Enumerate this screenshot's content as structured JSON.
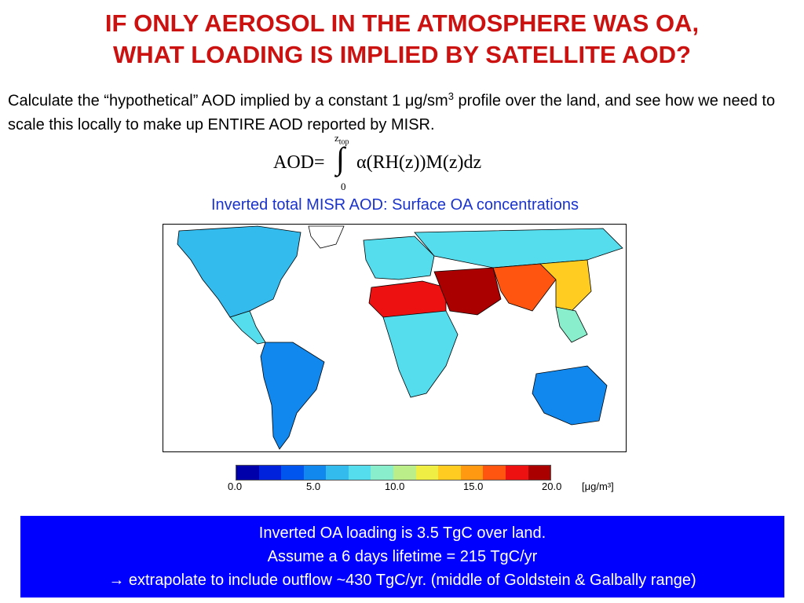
{
  "title": {
    "line1": "IF ONLY AEROSOL IN THE ATMOSPHERE WAS OA,",
    "line2": "WHAT LOADING IS IMPLIED BY SATELLITE AOD?"
  },
  "intro": {
    "text_a": "Calculate the “hypothetical” AOD implied by a constant 1 ",
    "mu": "μ",
    "text_b": "g/sm",
    "sup": "3",
    "text_c": " profile over the land, and see how we need to scale this locally to make up ENTIRE AOD reported by MISR."
  },
  "formula": {
    "lhs": "AOD=",
    "upper_limit": "z",
    "upper_sub": "top",
    "lower_limit": "0",
    "integrand": "α(RH(z))M(z)dz"
  },
  "map": {
    "title": "Inverted total MISR AOD: Surface OA concentrations"
  },
  "colorbar": {
    "colors": [
      "#0000aa",
      "#0022dd",
      "#0055ee",
      "#1188ee",
      "#33bbee",
      "#55ddee",
      "#88eecc",
      "#bbee88",
      "#eeee44",
      "#ffcc22",
      "#ff9911",
      "#ff5511",
      "#ee1111",
      "#aa0000"
    ],
    "ticks": [
      "0.0",
      "5.0",
      "10.0",
      "15.0",
      "20.0"
    ],
    "unit": "[μg/m³]"
  },
  "summary": {
    "line1": "Inverted OA loading is 3.5 TgC over land.",
    "line2": "Assume a 6 days lifetime = 215 TgC/yr",
    "arrow": "→",
    "line3": " extrapolate to include outflow ~430 TgC/yr.  (middle of Goldstein & Galbally range)"
  }
}
